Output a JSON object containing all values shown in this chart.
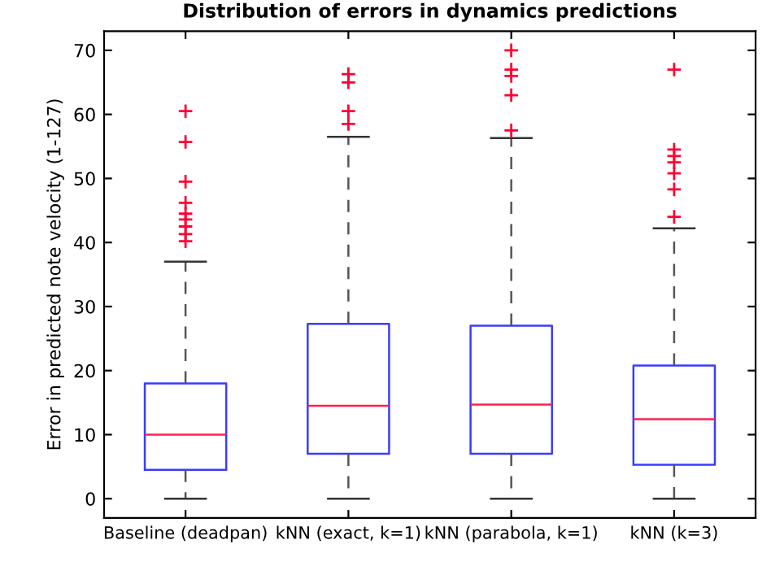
{
  "chart_data": {
    "type": "box",
    "title": "Distribution of errors in dynamics predictions",
    "ylabel": "Error in predicted note velocity (1-127)",
    "categories": [
      "Baseline (deadpan)",
      "kNN (exact, k=1)",
      "kNN (parabola, k=1)",
      "kNN (k=3)"
    ],
    "boxes": [
      {
        "low": 0,
        "q1": 4.5,
        "median": 10,
        "q3": 18,
        "high": 37,
        "outliers": [
          60.5,
          55.7,
          49.5,
          46.2,
          44.5,
          43.6,
          42.5,
          41.3,
          40.2
        ]
      },
      {
        "low": 0,
        "q1": 7,
        "median": 14.5,
        "q3": 27.3,
        "high": 56.5,
        "outliers": [
          58.5,
          60.5,
          65,
          66.3
        ]
      },
      {
        "low": 0,
        "q1": 7,
        "median": 14.7,
        "q3": 27,
        "high": 56.3,
        "outliers": [
          57.5,
          63,
          66,
          67,
          70
        ]
      },
      {
        "low": 0,
        "q1": 5.3,
        "median": 12.4,
        "q3": 20.8,
        "high": 42.2,
        "outliers": [
          44,
          48.3,
          50.8,
          52.5,
          53.5,
          54.5,
          67
        ]
      }
    ],
    "ylim": [
      -3,
      73
    ],
    "yticks": [
      0,
      10,
      20,
      30,
      40,
      50,
      60,
      70
    ],
    "grid": false,
    "legend": false
  }
}
